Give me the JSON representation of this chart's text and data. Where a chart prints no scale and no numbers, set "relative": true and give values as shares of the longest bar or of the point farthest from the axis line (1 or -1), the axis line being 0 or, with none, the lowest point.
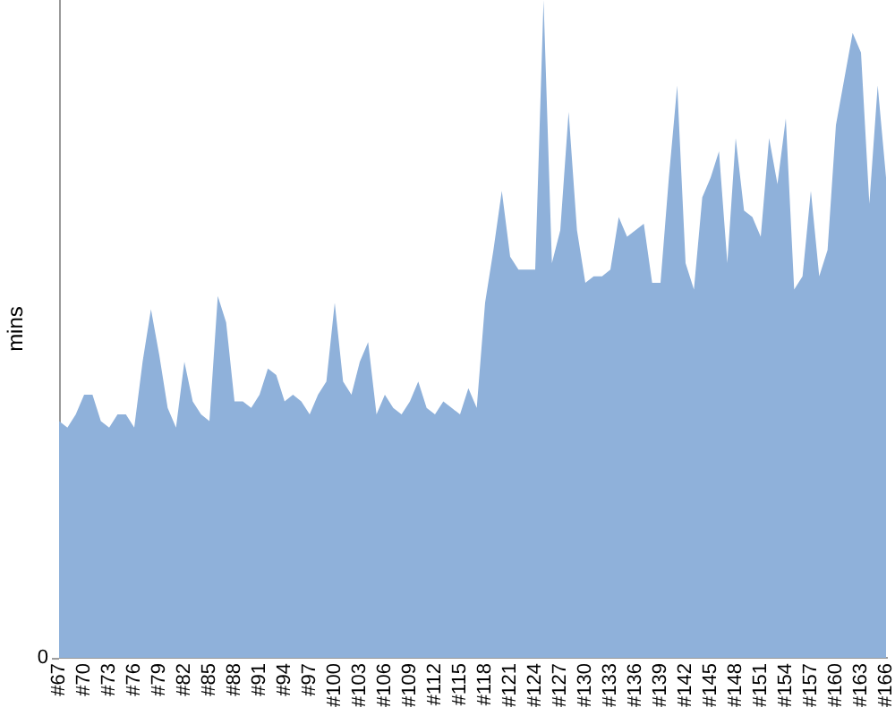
{
  "chart_data": {
    "type": "area",
    "ylabel": "mins",
    "relative": true,
    "color": "#8fb1da",
    "annotations": [
      "0"
    ],
    "categories": [
      "#67",
      null,
      null,
      "#70",
      null,
      null,
      "#73",
      null,
      null,
      "#76",
      null,
      null,
      "#79",
      null,
      null,
      "#82",
      null,
      null,
      "#85",
      null,
      null,
      "#88",
      null,
      null,
      "#91",
      null,
      null,
      "#94",
      null,
      null,
      "#97",
      null,
      null,
      "#100",
      null,
      null,
      "#103",
      null,
      null,
      "#106",
      null,
      null,
      "#109",
      null,
      null,
      "#112",
      null,
      null,
      "#115",
      null,
      null,
      "#118",
      null,
      null,
      "#121",
      null,
      null,
      "#124",
      null,
      null,
      "#127",
      null,
      null,
      "#130",
      null,
      null,
      "#133",
      null,
      null,
      "#136",
      null,
      null,
      "#139",
      null,
      null,
      "#142",
      null,
      null,
      "#145",
      null,
      null,
      "#148",
      null,
      null,
      "#151",
      null,
      null,
      "#154",
      null,
      null,
      "#157",
      null,
      null,
      "#160",
      null,
      null,
      "#163",
      null,
      null,
      "#166"
    ],
    "values": [
      0.36,
      0.35,
      0.37,
      0.4,
      0.4,
      0.36,
      0.35,
      0.37,
      0.37,
      0.35,
      0.45,
      0.53,
      0.46,
      0.38,
      0.35,
      0.45,
      0.39,
      0.37,
      0.36,
      0.55,
      0.51,
      0.39,
      0.39,
      0.38,
      0.4,
      0.44,
      0.43,
      0.39,
      0.4,
      0.39,
      0.37,
      0.4,
      0.42,
      0.54,
      0.42,
      0.4,
      0.45,
      0.48,
      0.37,
      0.4,
      0.38,
      0.37,
      0.39,
      0.42,
      0.38,
      0.37,
      0.39,
      0.38,
      0.37,
      0.41,
      0.38,
      0.54,
      0.62,
      0.71,
      0.61,
      0.59,
      0.59,
      0.59,
      1,
      0.6,
      0.65,
      0.83,
      0.65,
      0.57,
      0.58,
      0.58,
      0.59,
      0.67,
      0.64,
      0.65,
      0.66,
      0.57,
      0.57,
      0.73,
      0.87,
      0.6,
      0.56,
      0.7,
      0.73,
      0.77,
      0.6,
      0.79,
      0.68,
      0.67,
      0.64,
      0.79,
      0.72,
      0.82,
      0.56,
      0.58,
      0.71,
      0.58,
      0.62,
      0.81,
      0.88,
      0.95,
      0.92,
      0.69,
      0.87,
      0.73
    ]
  }
}
